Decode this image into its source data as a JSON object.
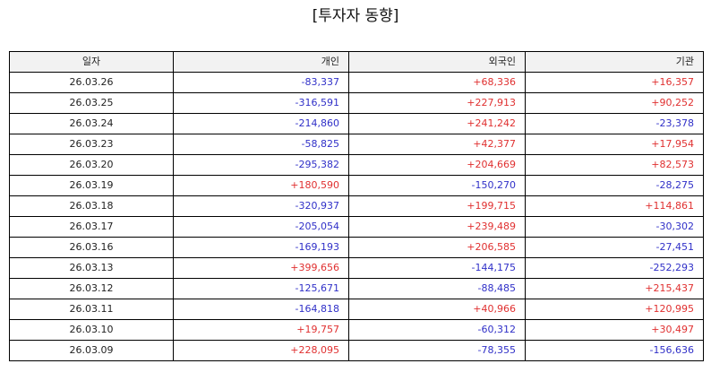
{
  "title": "[투자자 동향]",
  "colors": {
    "positive": "#e03030",
    "negative": "#3030c8"
  },
  "table": {
    "headers": [
      "일자",
      "개인",
      "외국인",
      "기관"
    ],
    "rows": [
      [
        "26.03.26",
        "-83,337",
        "+68,336",
        "+16,357"
      ],
      [
        "26.03.25",
        "-316,591",
        "+227,913",
        "+90,252"
      ],
      [
        "26.03.24",
        "-214,860",
        "+241,242",
        "-23,378"
      ],
      [
        "26.03.23",
        "-58,825",
        "+42,377",
        "+17,954"
      ],
      [
        "26.03.20",
        "-295,382",
        "+204,669",
        "+82,573"
      ],
      [
        "26.03.19",
        "+180,590",
        "-150,270",
        "-28,275"
      ],
      [
        "26.03.18",
        "-320,937",
        "+199,715",
        "+114,861"
      ],
      [
        "26.03.17",
        "-205,054",
        "+239,489",
        "-30,302"
      ],
      [
        "26.03.16",
        "-169,193",
        "+206,585",
        "-27,451"
      ],
      [
        "26.03.13",
        "+399,656",
        "-144,175",
        "-252,293"
      ],
      [
        "26.03.12",
        "-125,671",
        "-88,485",
        "+215,437"
      ],
      [
        "26.03.11",
        "-164,818",
        "+40,966",
        "+120,995"
      ],
      [
        "26.03.10",
        "+19,757",
        "-60,312",
        "+30,497"
      ],
      [
        "26.03.09",
        "+228,095",
        "-78,355",
        "-156,636"
      ]
    ]
  }
}
